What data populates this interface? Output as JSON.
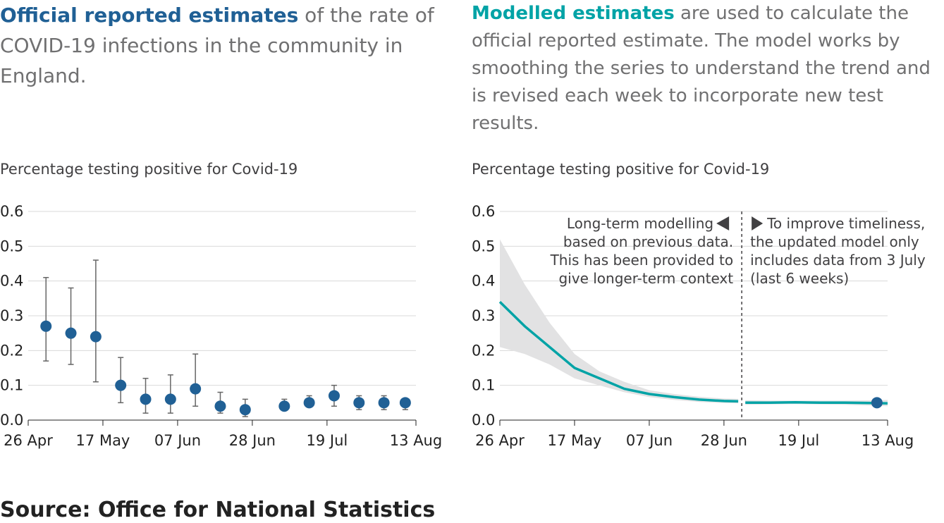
{
  "left_panel": {
    "intro_highlight": "Official reported estimates",
    "intro_rest": " of the rate of COVID-19 infections in the community in England.",
    "caption": "Percentage testing positive for Covid-19"
  },
  "right_panel": {
    "intro_highlight": "Modelled estimates",
    "intro_rest": " are used to calculate the official reported estimate. The model works by smoothing the series to understand the trend and is revised each week to incorporate new test results.",
    "caption": "Percentage testing positive for Covid-19",
    "annotation_left": [
      "Long-term modelling",
      "based on previous data.",
      "This has been provided to",
      "give longer-term context"
    ],
    "annotation_right": [
      "To improve timeliness,",
      "the updated model only",
      "includes data from 3 July",
      "(last 6 weeks)"
    ]
  },
  "source": "Source: Office for National Statistics",
  "colors": {
    "blue": "#206095",
    "teal": "#00a3a6",
    "band": "#e2e2e3",
    "grid": "#d9d9d9",
    "text": "#707071"
  },
  "chart_data": [
    {
      "type": "scatter",
      "title": "Official reported estimates",
      "ylabel": "Percentage testing positive for Covid-19",
      "x_ticks": [
        "26 Apr",
        "17 May",
        "07 Jun",
        "28 Jun",
        "19 Jul",
        "13 Aug"
      ],
      "y_ticks": [
        "0.0",
        "0.1",
        "0.2",
        "0.3",
        "0.4",
        "0.5",
        "0.6"
      ],
      "ylim": [
        0,
        0.6
      ],
      "points": [
        {
          "x": "2020-05-01",
          "y": 0.27,
          "lower": 0.17,
          "upper": 0.41
        },
        {
          "x": "2020-05-08",
          "y": 0.25,
          "lower": 0.16,
          "upper": 0.38
        },
        {
          "x": "2020-05-15",
          "y": 0.24,
          "lower": 0.11,
          "upper": 0.46
        },
        {
          "x": "2020-05-22",
          "y": 0.1,
          "lower": 0.05,
          "upper": 0.18
        },
        {
          "x": "2020-05-29",
          "y": 0.06,
          "lower": 0.02,
          "upper": 0.12
        },
        {
          "x": "2020-06-05",
          "y": 0.06,
          "lower": 0.02,
          "upper": 0.13
        },
        {
          "x": "2020-06-12",
          "y": 0.09,
          "lower": 0.04,
          "upper": 0.19
        },
        {
          "x": "2020-06-19",
          "y": 0.04,
          "lower": 0.02,
          "upper": 0.08
        },
        {
          "x": "2020-06-26",
          "y": 0.03,
          "lower": 0.01,
          "upper": 0.06
        },
        {
          "x": "2020-07-07",
          "y": 0.04,
          "lower": 0.03,
          "upper": 0.06
        },
        {
          "x": "2020-07-14",
          "y": 0.05,
          "lower": 0.04,
          "upper": 0.07
        },
        {
          "x": "2020-07-21",
          "y": 0.07,
          "lower": 0.04,
          "upper": 0.1
        },
        {
          "x": "2020-07-28",
          "y": 0.05,
          "lower": 0.03,
          "upper": 0.07
        },
        {
          "x": "2020-08-04",
          "y": 0.05,
          "lower": 0.03,
          "upper": 0.07
        },
        {
          "x": "2020-08-10",
          "y": 0.05,
          "lower": 0.03,
          "upper": 0.06
        }
      ]
    },
    {
      "type": "line",
      "title": "Modelled estimates",
      "ylabel": "Percentage testing positive for Covid-19",
      "x_ticks": [
        "26 Apr",
        "17 May",
        "07 Jun",
        "28 Jun",
        "19 Jul",
        "13 Aug"
      ],
      "y_ticks": [
        "0.0",
        "0.1",
        "0.2",
        "0.3",
        "0.4",
        "0.5",
        "0.6"
      ],
      "ylim": [
        0,
        0.6
      ],
      "split_date": "2020-07-03",
      "series": [
        {
          "values": [
            {
              "x": "2020-04-26",
              "y": 0.34,
              "lower": 0.21,
              "upper": 0.52
            },
            {
              "x": "2020-05-03",
              "y": 0.27,
              "lower": 0.19,
              "upper": 0.39
            },
            {
              "x": "2020-05-10",
              "y": 0.21,
              "lower": 0.16,
              "upper": 0.28
            },
            {
              "x": "2020-05-17",
              "y": 0.15,
              "lower": 0.12,
              "upper": 0.19
            },
            {
              "x": "2020-05-24",
              "y": 0.12,
              "lower": 0.1,
              "upper": 0.14
            },
            {
              "x": "2020-05-31",
              "y": 0.09,
              "lower": 0.08,
              "upper": 0.11
            },
            {
              "x": "2020-06-07",
              "y": 0.075,
              "lower": 0.066,
              "upper": 0.086
            },
            {
              "x": "2020-06-14",
              "y": 0.066,
              "lower": 0.058,
              "upper": 0.075
            },
            {
              "x": "2020-06-21",
              "y": 0.059,
              "lower": 0.052,
              "upper": 0.067
            },
            {
              "x": "2020-06-28",
              "y": 0.055,
              "lower": 0.049,
              "upper": 0.062
            },
            {
              "x": "2020-07-02",
              "y": 0.054,
              "lower": 0.048,
              "upper": 0.061
            }
          ]
        },
        {
          "values": [
            {
              "x": "2020-07-04",
              "y": 0.05,
              "lower": 0.044,
              "upper": 0.057
            },
            {
              "x": "2020-07-11",
              "y": 0.05,
              "lower": 0.045,
              "upper": 0.056
            },
            {
              "x": "2020-07-18",
              "y": 0.051,
              "lower": 0.046,
              "upper": 0.056
            },
            {
              "x": "2020-07-25",
              "y": 0.05,
              "lower": 0.045,
              "upper": 0.056
            },
            {
              "x": "2020-08-01",
              "y": 0.05,
              "lower": 0.044,
              "upper": 0.056
            },
            {
              "x": "2020-08-08",
              "y": 0.049,
              "lower": 0.042,
              "upper": 0.057
            },
            {
              "x": "2020-08-13",
              "y": 0.048,
              "lower": 0.04,
              "upper": 0.058
            }
          ]
        }
      ],
      "points": [
        {
          "x": "2020-08-10",
          "y": 0.05,
          "lower": 0.04,
          "upper": 0.06
        }
      ]
    }
  ]
}
